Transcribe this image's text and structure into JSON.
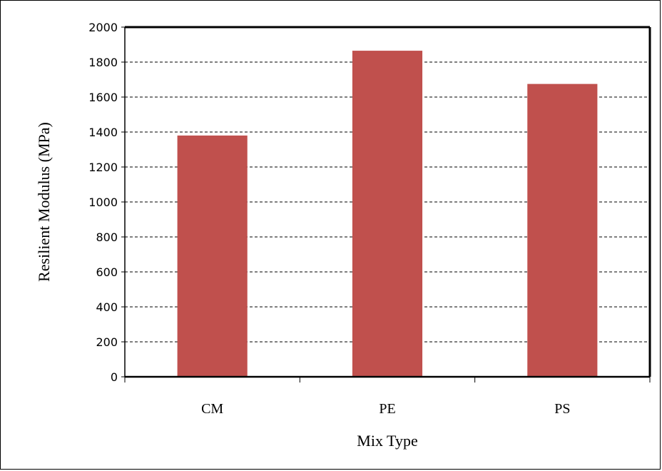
{
  "chart_data": {
    "type": "bar",
    "categories": [
      "CM",
      "PE",
      "PS"
    ],
    "values": [
      1380,
      1865,
      1675
    ],
    "xlabel": "Mix Type",
    "ylabel": "Resilient Modulus (MPa)",
    "ylim": [
      0,
      2000
    ],
    "yticks": [
      0,
      200,
      400,
      600,
      800,
      1000,
      1200,
      1400,
      1600,
      1800,
      2000
    ],
    "ytick_labels": [
      "0",
      "200",
      "400",
      "600",
      "800",
      "1000",
      "1200",
      "1400",
      "1600",
      "1800",
      "2000"
    ],
    "grid": "horizontal dashed",
    "legend": "none",
    "bar_color": "#c0504d"
  }
}
